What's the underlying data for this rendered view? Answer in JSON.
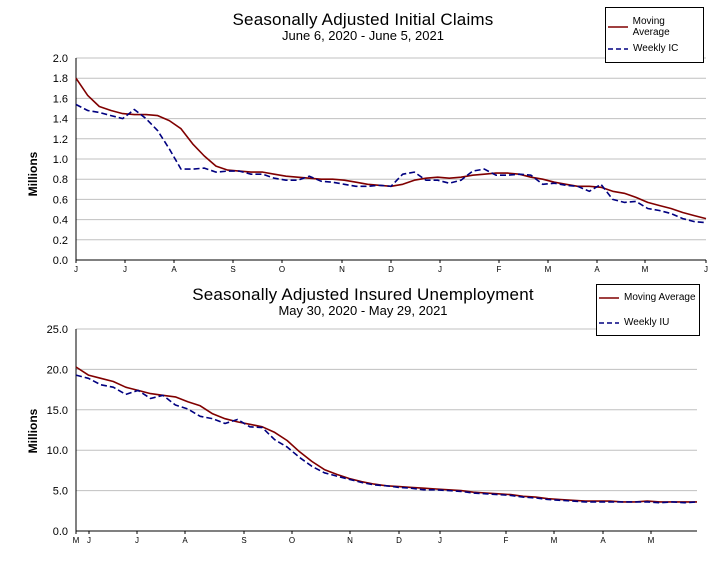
{
  "chart_data": [
    {
      "type": "line",
      "title": "Seasonally Adjusted Initial Claims",
      "subtitle": "June 6, 2020 - June 5, 2021",
      "ylabel": "Millions",
      "ylim": [
        0,
        2.0
      ],
      "yticks": [
        "0.0",
        "0.2",
        "0.4",
        "0.6",
        "0.8",
        "1.0",
        "1.2",
        "1.4",
        "1.6",
        "1.8",
        "2.0"
      ],
      "xticks": [
        "J",
        "J",
        "A",
        "S",
        "O",
        "N",
        "D",
        "J",
        "F",
        "M",
        "A",
        "M",
        "J"
      ],
      "legend": "top-right",
      "series": [
        {
          "name": "Moving Average",
          "color": "#800000",
          "dash": "solid",
          "values": [
            1.8,
            1.63,
            1.52,
            1.48,
            1.45,
            1.44,
            1.44,
            1.43,
            1.38,
            1.3,
            1.15,
            1.03,
            0.93,
            0.89,
            0.88,
            0.87,
            0.87,
            0.85,
            0.83,
            0.82,
            0.81,
            0.8,
            0.8,
            0.79,
            0.77,
            0.75,
            0.74,
            0.73,
            0.75,
            0.79,
            0.81,
            0.82,
            0.81,
            0.82,
            0.84,
            0.85,
            0.86,
            0.86,
            0.85,
            0.82,
            0.8,
            0.77,
            0.75,
            0.73,
            0.73,
            0.72,
            0.68,
            0.66,
            0.62,
            0.57,
            0.54,
            0.51,
            0.47,
            0.44,
            0.41
          ]
        },
        {
          "name": "Weekly IC",
          "color": "#000080",
          "dash": "dashed",
          "values": [
            1.54,
            1.48,
            1.46,
            1.43,
            1.4,
            1.49,
            1.4,
            1.28,
            1.1,
            0.9,
            0.9,
            0.91,
            0.87,
            0.88,
            0.88,
            0.85,
            0.85,
            0.81,
            0.79,
            0.79,
            0.83,
            0.78,
            0.77,
            0.75,
            0.73,
            0.73,
            0.74,
            0.73,
            0.85,
            0.87,
            0.79,
            0.79,
            0.76,
            0.79,
            0.88,
            0.9,
            0.84,
            0.84,
            0.85,
            0.84,
            0.75,
            0.76,
            0.74,
            0.73,
            0.68,
            0.75,
            0.6,
            0.57,
            0.58,
            0.51,
            0.49,
            0.46,
            0.41,
            0.38,
            0.37
          ]
        }
      ]
    },
    {
      "type": "line",
      "title": "Seasonally Adjusted Insured Unemployment",
      "subtitle": "May 30, 2020 - May 29, 2021",
      "ylabel": "Millions",
      "ylim": [
        0,
        25.0
      ],
      "yticks": [
        "0.0",
        "5.0",
        "10.0",
        "15.0",
        "20.0",
        "25.0"
      ],
      "xticks": [
        "M",
        "J",
        "J",
        "A",
        "S",
        "O",
        "N",
        "D",
        "J",
        "F",
        "M",
        "A",
        "M"
      ],
      "legend": "top-right",
      "series": [
        {
          "name": "Moving Average",
          "color": "#800000",
          "dash": "solid",
          "values": [
            20.3,
            19.3,
            18.9,
            18.5,
            17.8,
            17.4,
            17.0,
            16.8,
            16.6,
            16.0,
            15.5,
            14.5,
            13.9,
            13.5,
            13.2,
            12.9,
            12.2,
            11.2,
            9.8,
            8.6,
            7.6,
            7.0,
            6.5,
            6.1,
            5.8,
            5.6,
            5.5,
            5.4,
            5.3,
            5.2,
            5.1,
            5.0,
            4.8,
            4.7,
            4.6,
            4.5,
            4.3,
            4.2,
            4.0,
            3.9,
            3.8,
            3.7,
            3.7,
            3.7,
            3.6,
            3.6,
            3.7,
            3.6,
            3.6,
            3.6,
            3.6
          ]
        },
        {
          "name": "Weekly IU",
          "color": "#000080",
          "dash": "dashed",
          "values": [
            19.3,
            18.9,
            18.1,
            17.8,
            16.9,
            17.4,
            16.4,
            16.8,
            15.6,
            15.1,
            14.2,
            13.9,
            13.3,
            13.8,
            12.9,
            12.8,
            11.3,
            10.4,
            9.1,
            8.0,
            7.2,
            6.8,
            6.4,
            6.0,
            5.7,
            5.6,
            5.4,
            5.3,
            5.1,
            5.1,
            5.0,
            4.9,
            4.7,
            4.6,
            4.5,
            4.4,
            4.2,
            4.1,
            3.9,
            3.8,
            3.7,
            3.6,
            3.6,
            3.6,
            3.6,
            3.6,
            3.6,
            3.5,
            3.6,
            3.5,
            3.6
          ]
        }
      ]
    }
  ]
}
